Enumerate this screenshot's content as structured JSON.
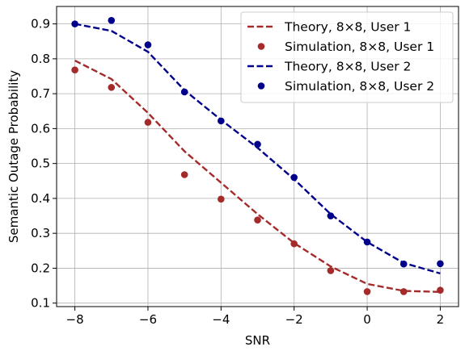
{
  "chart_data": {
    "type": "line",
    "title": "",
    "xlabel": "SNR",
    "ylabel": "Semantic Outage Probability",
    "xlim": [
      -8.5,
      2.5
    ],
    "ylim": [
      0.09,
      0.95
    ],
    "xticks": [
      -8,
      -6,
      -4,
      -2,
      0,
      2
    ],
    "xtick_labels": [
      "−8",
      "−6",
      "−4",
      "−2",
      "0",
      "2"
    ],
    "yticks": [
      0.1,
      0.2,
      0.3,
      0.4,
      0.5,
      0.6,
      0.7,
      0.8,
      0.9
    ],
    "ytick_labels": [
      "0.1",
      "0.2",
      "0.3",
      "0.4",
      "0.5",
      "0.6",
      "0.7",
      "0.8",
      "0.9"
    ],
    "grid": true,
    "legend_position": "top-right",
    "series": [
      {
        "name": "Theory, 8×8, User 1",
        "kind": "line",
        "style": "dashed",
        "color": "#a52a2a",
        "x": [
          -8,
          -7,
          -6,
          -5,
          -4,
          -3,
          -2,
          -1,
          0,
          1,
          2
        ],
        "y": [
          0.795,
          0.742,
          0.645,
          0.535,
          0.445,
          0.355,
          0.272,
          0.205,
          0.155,
          0.135,
          0.132
        ]
      },
      {
        "name": "Simulation, 8×8, User 1",
        "kind": "scatter",
        "color": "#a52a2a",
        "x": [
          -8,
          -7,
          -6,
          -5,
          -4,
          -3,
          -2,
          -1,
          0,
          1,
          2
        ],
        "y": [
          0.768,
          0.718,
          0.618,
          0.468,
          0.398,
          0.338,
          0.27,
          0.193,
          0.133,
          0.133,
          0.137
        ]
      },
      {
        "name": "Theory, 8×8, User 2",
        "kind": "line",
        "style": "dashed",
        "color": "#00008b",
        "x": [
          -8,
          -7,
          -6,
          -5,
          -4,
          -3,
          -2,
          -1,
          0,
          1,
          2
        ],
        "y": [
          0.9,
          0.88,
          0.82,
          0.71,
          0.625,
          0.545,
          0.455,
          0.355,
          0.275,
          0.215,
          0.185
        ]
      },
      {
        "name": "Simulation, 8×8, User 2",
        "kind": "scatter",
        "color": "#00008b",
        "x": [
          -8,
          -7,
          -6,
          -5,
          -4,
          -3,
          -2,
          -1,
          0,
          1,
          2
        ],
        "y": [
          0.9,
          0.91,
          0.84,
          0.705,
          0.622,
          0.555,
          0.46,
          0.35,
          0.275,
          0.212,
          0.213
        ]
      }
    ]
  }
}
